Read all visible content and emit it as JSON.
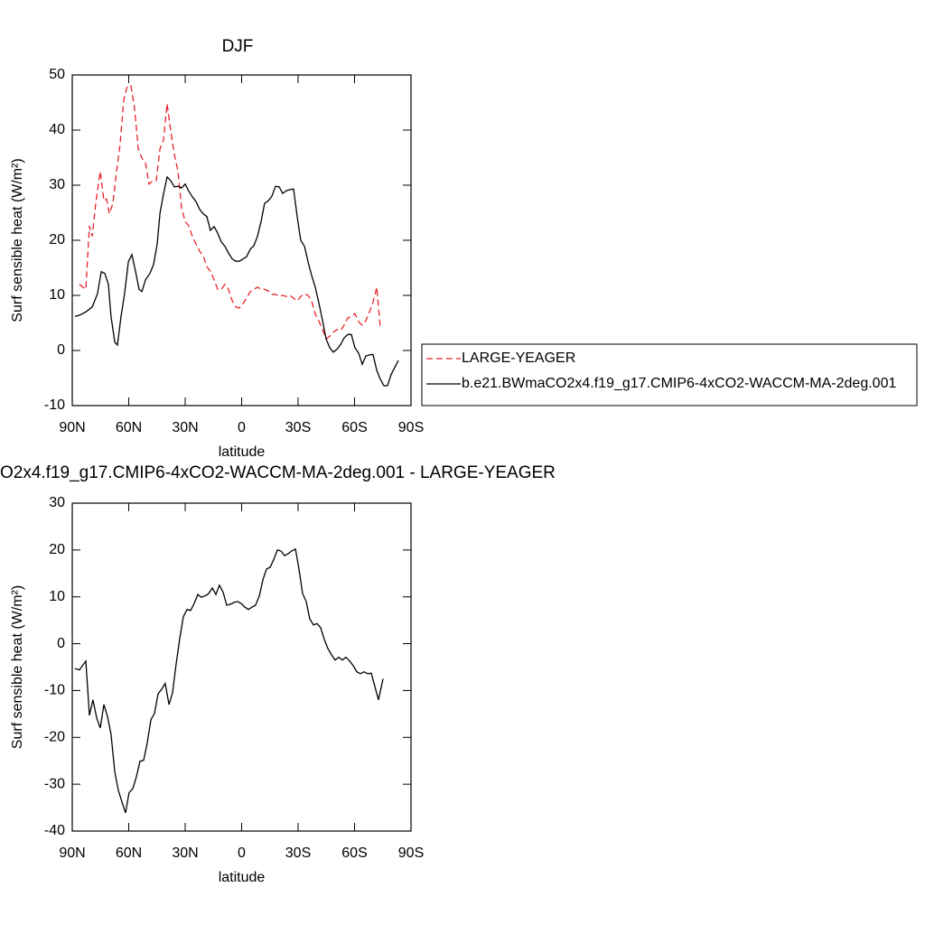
{
  "chart_data": [
    {
      "type": "line",
      "title": "DJF",
      "xlabel": "latitude",
      "ylabel": "Surf sensible heat (W/m²)",
      "xlim": [
        90,
        -90
      ],
      "xticks": [
        {
          "value": 90,
          "label": "90N"
        },
        {
          "value": 60,
          "label": "60N"
        },
        {
          "value": 30,
          "label": "30N"
        },
        0,
        {
          "value": -30,
          "label": "30S"
        },
        {
          "value": -60,
          "label": "60S"
        },
        {
          "value": -90,
          "label": "90S"
        }
      ],
      "ylim": [
        -10,
        50
      ],
      "yticks": [
        -10,
        0,
        10,
        20,
        30,
        40,
        50
      ],
      "legend": "right",
      "series": [
        {
          "name": "LARGE-YEAGER",
          "color": "#e8232a",
          "dashed": true,
          "x": [
            86.2,
            82.8,
            80.9,
            79.4,
            77.5,
            75.1,
            73.2,
            71.8,
            70.3,
            68.4,
            66.5,
            64.6,
            62.6,
            60.7,
            58.8,
            56.9,
            54.9,
            53.0,
            51.1,
            49.2,
            47.3,
            45.4,
            43.4,
            41.5,
            39.6,
            37.7,
            35.8,
            33.8,
            31.9,
            30.0,
            28.1,
            26.2,
            24.2,
            22.3,
            20.4,
            18.5,
            16.6,
            14.6,
            12.7,
            10.8,
            8.9,
            7.0,
            5.0,
            3.1,
            1.2,
            -0.7,
            -2.6,
            -4.6,
            -6.5,
            -8.4,
            -10.3,
            -12.2,
            -14.2,
            -16.1,
            -18.0,
            -19.9,
            -21.8,
            -23.8,
            -25.7,
            -27.6,
            -29.5,
            -31.4,
            -33.4,
            -35.3,
            -37.2,
            -39.1,
            -41.0,
            -43.0,
            -44.9,
            -46.8,
            -48.7,
            -50.6,
            -52.6,
            -54.5,
            -56.4,
            -58.3,
            -60.2,
            -62.2,
            -64.1,
            -66.0,
            -67.9,
            -69.8,
            -71.8,
            -73.7
          ],
          "values": [
            12.0,
            11.1,
            22.6,
            20.7,
            26.7,
            32.5,
            27.2,
            27.5,
            24.8,
            26.7,
            32.5,
            37.4,
            45.6,
            48.0,
            48.0,
            43.9,
            36.6,
            34.9,
            34.1,
            30.2,
            30.8,
            30.8,
            36.6,
            38.2,
            44.8,
            39.8,
            35.7,
            32.5,
            25.9,
            23.4,
            22.6,
            20.7,
            19.3,
            18.0,
            17.2,
            15.2,
            14.4,
            12.8,
            11.1,
            11.1,
            12.0,
            11.1,
            9.0,
            7.9,
            7.7,
            8.5,
            9.5,
            10.7,
            11.1,
            11.5,
            11.1,
            11.1,
            10.8,
            10.2,
            10.2,
            9.8,
            10.0,
            9.8,
            10.0,
            9.5,
            9.0,
            9.8,
            10.3,
            10.0,
            9.0,
            6.6,
            5.4,
            3.8,
            2.1,
            2.6,
            3.3,
            3.8,
            3.6,
            4.6,
            5.9,
            6.2,
            6.7,
            5.2,
            4.6,
            5.4,
            7.0,
            8.7,
            11.5,
            4.1
          ]
        },
        {
          "name": "b.e21.BWmaCO2x4.f19_g17.CMIP6-4xCO2-WACCM-MA-2deg.001",
          "color": "#000000",
          "dashed": false,
          "x": [
            88.6,
            86.2,
            82.8,
            79.4,
            76.6,
            74.6,
            72.7,
            70.8,
            69.4,
            67.4,
            66.0,
            64.1,
            62.2,
            60.2,
            58.3,
            56.4,
            54.5,
            53.0,
            51.1,
            48.7,
            46.8,
            44.9,
            43.4,
            41.5,
            39.6,
            37.7,
            35.8,
            33.8,
            31.9,
            30.0,
            28.1,
            26.2,
            24.2,
            22.3,
            20.4,
            18.5,
            16.6,
            14.6,
            12.7,
            10.8,
            8.9,
            7.0,
            5.0,
            3.1,
            1.2,
            -0.7,
            -2.6,
            -4.6,
            -6.5,
            -8.4,
            -10.3,
            -12.2,
            -14.2,
            -16.1,
            -18.0,
            -19.9,
            -21.8,
            -23.8,
            -25.7,
            -27.6,
            -29.5,
            -31.4,
            -33.4,
            -35.3,
            -37.2,
            -39.1,
            -41.0,
            -43.0,
            -44.9,
            -46.8,
            -48.7,
            -50.6,
            -52.6,
            -54.5,
            -56.4,
            -58.3,
            -60.2,
            -62.2,
            -64.1,
            -66.0,
            -67.9,
            -69.8,
            -71.8,
            -73.7,
            -75.6,
            -77.5,
            -79.4,
            -83.3
          ],
          "values": [
            6.2,
            6.4,
            7.0,
            7.9,
            10.3,
            14.3,
            14.0,
            12.0,
            6.2,
            1.5,
            1.0,
            6.2,
            10.3,
            16.1,
            17.4,
            14.4,
            11.1,
            10.7,
            12.8,
            14.0,
            15.6,
            19.3,
            24.9,
            28.4,
            31.5,
            30.8,
            29.7,
            29.8,
            29.5,
            30.2,
            28.9,
            27.9,
            27.0,
            25.6,
            24.8,
            24.3,
            21.8,
            22.5,
            21.3,
            19.7,
            18.9,
            17.7,
            16.6,
            16.2,
            16.2,
            16.6,
            17.0,
            18.4,
            19.0,
            20.7,
            23.4,
            26.7,
            27.2,
            28.0,
            29.8,
            29.7,
            28.5,
            29.0,
            29.2,
            29.3,
            24.3,
            20.0,
            18.9,
            16.1,
            13.6,
            11.5,
            8.7,
            5.4,
            2.1,
            0.5,
            -0.3,
            0.2,
            1.1,
            2.3,
            2.9,
            2.9,
            0.5,
            -0.5,
            -2.5,
            -1.0,
            -0.8,
            -0.7,
            -3.6,
            -5.2,
            -6.4,
            -6.4,
            -4.4,
            -1.8
          ]
        }
      ]
    },
    {
      "type": "line",
      "title": "O2x4.f19_g17.CMIP6-4xCO2-WACCM-MA-2deg.001 - LARGE-YEAGER",
      "xlabel": "latitude",
      "ylabel": "Surf sensible heat (W/m²)",
      "xlim": [
        90,
        -90
      ],
      "xticks": [
        {
          "value": 90,
          "label": "90N"
        },
        {
          "value": 60,
          "label": "60N"
        },
        {
          "value": 30,
          "label": "30N"
        },
        0,
        {
          "value": -30,
          "label": "30S"
        },
        {
          "value": -60,
          "label": "60S"
        },
        {
          "value": -90,
          "label": "90S"
        }
      ],
      "ylim": [
        -40,
        30
      ],
      "yticks": [
        -40,
        -30,
        -20,
        -10,
        0,
        10,
        20,
        30
      ],
      "series": [
        {
          "color": "#000000",
          "dashed": false,
          "x": [
            88.6,
            86.2,
            82.8,
            80.9,
            79.0,
            77.0,
            75.1,
            73.2,
            71.3,
            69.4,
            67.4,
            65.5,
            63.6,
            61.7,
            59.8,
            57.8,
            55.9,
            54.0,
            52.1,
            50.2,
            48.2,
            46.3,
            44.4,
            42.5,
            40.6,
            38.6,
            36.7,
            34.8,
            32.9,
            31.0,
            29.0,
            27.1,
            25.2,
            23.3,
            21.4,
            19.4,
            17.5,
            15.6,
            13.7,
            11.8,
            9.8,
            7.9,
            6.0,
            4.1,
            2.2,
            0.2,
            -1.7,
            -3.6,
            -5.5,
            -7.4,
            -9.4,
            -11.3,
            -13.2,
            -15.1,
            -17.0,
            -19.0,
            -20.9,
            -22.8,
            -24.7,
            -26.6,
            -28.6,
            -30.5,
            -32.4,
            -34.3,
            -36.2,
            -38.2,
            -40.1,
            -42.0,
            -43.9,
            -45.8,
            -47.8,
            -49.7,
            -51.6,
            -53.5,
            -55.4,
            -57.4,
            -59.3,
            -61.2,
            -63.1,
            -65.0,
            -67.0,
            -68.9,
            -72.7,
            -75.1
          ],
          "values": [
            -5.3,
            -5.6,
            -3.7,
            -15.3,
            -12.0,
            -15.9,
            -18.0,
            -13.0,
            -15.5,
            -19.3,
            -27.4,
            -31.3,
            -33.8,
            -36.1,
            -31.8,
            -30.9,
            -28.4,
            -25.1,
            -24.9,
            -21.3,
            -16.2,
            -14.9,
            -10.7,
            -9.7,
            -8.5,
            -13.0,
            -10.5,
            -4.3,
            1.1,
            5.7,
            7.3,
            7.1,
            8.6,
            10.5,
            9.9,
            10.2,
            10.7,
            11.9,
            10.5,
            12.5,
            10.9,
            8.2,
            8.4,
            8.8,
            9.0,
            8.6,
            7.8,
            7.3,
            7.8,
            8.2,
            10.2,
            13.6,
            15.9,
            16.3,
            17.9,
            20.0,
            19.8,
            18.8,
            19.2,
            19.8,
            20.2,
            15.9,
            10.7,
            9.0,
            5.3,
            4.0,
            4.3,
            3.4,
            0.9,
            -1.0,
            -2.4,
            -3.5,
            -2.9,
            -3.5,
            -2.9,
            -3.7,
            -4.7,
            -6.0,
            -6.4,
            -6.0,
            -6.4,
            -6.3,
            -12.0,
            -7.5
          ]
        }
      ]
    }
  ]
}
